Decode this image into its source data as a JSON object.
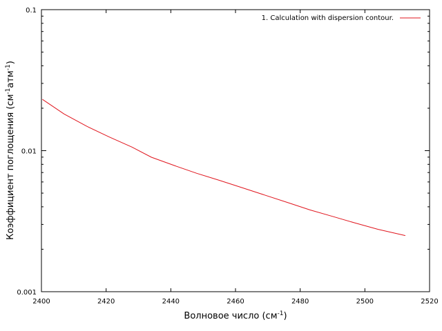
{
  "chart_data": {
    "type": "line",
    "xlabel": "Волновое число (см",
    "xlabel_sup": "-1",
    "xlabel_tail": ")",
    "ylabel_parts": [
      "Коэффициент поглощения (см",
      "-1",
      "атм",
      "-1",
      ")"
    ],
    "xlim": [
      2400,
      2520
    ],
    "ylim": [
      0.001,
      0.1
    ],
    "yscale": "log",
    "grid": false,
    "legend_position": "top-right",
    "x_ticks": [
      2400,
      2420,
      2440,
      2460,
      2480,
      2500,
      2520
    ],
    "x_tick_labels": [
      "2400",
      "2420",
      "2440",
      "2460",
      "2480",
      "2500",
      "2520"
    ],
    "y_ticks": [
      0.001,
      0.01,
      0.1
    ],
    "y_tick_labels": [
      "0.001",
      "0.01",
      "0.1"
    ],
    "series": [
      {
        "name": "1. Calculation with dispersion contour.",
        "color": "#e0141c",
        "x": [
          2400.3,
          2407,
          2414,
          2421,
          2428,
          2434,
          2441,
          2448,
          2455,
          2462,
          2469,
          2476,
          2483,
          2490,
          2497,
          2504,
          2512.5
        ],
        "y": [
          0.0231,
          0.0182,
          0.0149,
          0.0125,
          0.0106,
          0.00899,
          0.00786,
          0.00691,
          0.00616,
          0.00547,
          0.00485,
          0.0043,
          0.0038,
          0.00342,
          0.00307,
          0.00277,
          0.0025
        ]
      }
    ]
  }
}
